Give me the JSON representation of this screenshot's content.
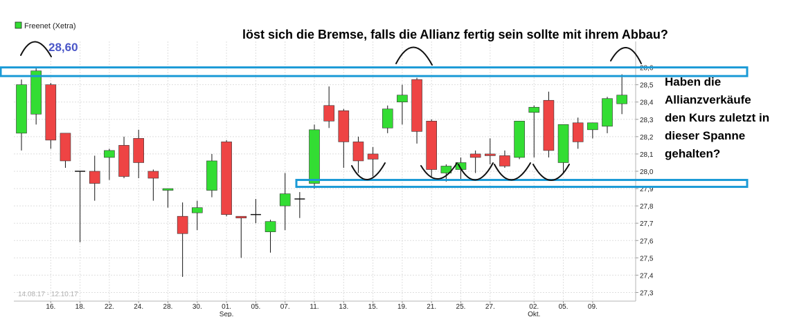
{
  "chart_data": {
    "type": "candlestick",
    "legend": {
      "label": "Freenet (Xetra)",
      "color": "#33dd33",
      "placement": "top-left"
    },
    "date_range": "14.08.17 - 12.10.17",
    "ylim": [
      27.25,
      28.75
    ],
    "yticks": [
      "27,3",
      "27,4",
      "27,5",
      "27,6",
      "27,7",
      "27,8",
      "27,9",
      "28,0",
      "28,1",
      "28,2",
      "28,3",
      "28,4",
      "28,5",
      "28,6"
    ],
    "ytick_values": [
      27.3,
      27.4,
      27.5,
      27.6,
      27.7,
      27.8,
      27.9,
      28.0,
      28.1,
      28.2,
      28.3,
      28.4,
      28.5,
      28.6
    ],
    "xticks": [
      {
        "label": "16.",
        "index": 2
      },
      {
        "label": "18.",
        "index": 4
      },
      {
        "label": "22.",
        "index": 6
      },
      {
        "label": "24.",
        "index": 8
      },
      {
        "label": "28.",
        "index": 10
      },
      {
        "label": "30.",
        "index": 12
      },
      {
        "label": "01.",
        "index": 14
      },
      {
        "label": "05.",
        "index": 16
      },
      {
        "label": "07.",
        "index": 18
      },
      {
        "label": "11.",
        "index": 20
      },
      {
        "label": "13.",
        "index": 22
      },
      {
        "label": "15.",
        "index": 24
      },
      {
        "label": "19.",
        "index": 26
      },
      {
        "label": "21.",
        "index": 28
      },
      {
        "label": "25.",
        "index": 30
      },
      {
        "label": "27.",
        "index": 32
      },
      {
        "label": "02.",
        "index": 35
      },
      {
        "label": "05.",
        "index": 37
      },
      {
        "label": "09.",
        "index": 39
      }
    ],
    "month_labels": [
      {
        "label": "Sep.",
        "index": 14
      },
      {
        "label": "Okt.",
        "index": 35
      }
    ],
    "up_color": "#33dd33",
    "down_color": "#ee4444",
    "candles": [
      {
        "o": 28.22,
        "h": 28.53,
        "l": 28.12,
        "c": 28.5
      },
      {
        "o": 28.33,
        "h": 28.6,
        "l": 28.27,
        "c": 28.58
      },
      {
        "o": 28.5,
        "h": 28.51,
        "l": 28.13,
        "c": 28.18
      },
      {
        "o": 28.22,
        "h": 28.22,
        "l": 28.02,
        "c": 28.06
      },
      {
        "o": 28.0,
        "h": 28.0,
        "l": 27.59,
        "c": 28.0
      },
      {
        "o": 28.0,
        "h": 28.09,
        "l": 27.83,
        "c": 27.93
      },
      {
        "o": 28.08,
        "h": 28.13,
        "l": 27.95,
        "c": 28.12
      },
      {
        "o": 28.15,
        "h": 28.2,
        "l": 27.96,
        "c": 27.97
      },
      {
        "o": 28.19,
        "h": 28.24,
        "l": 27.96,
        "c": 28.05
      },
      {
        "o": 28.0,
        "h": 28.01,
        "l": 27.83,
        "c": 27.96
      },
      {
        "o": 27.89,
        "h": 27.9,
        "l": 27.79,
        "c": 27.9
      },
      {
        "o": 27.74,
        "h": 27.82,
        "l": 27.39,
        "c": 27.64
      },
      {
        "o": 27.76,
        "h": 27.83,
        "l": 27.66,
        "c": 27.79
      },
      {
        "o": 27.89,
        "h": 28.1,
        "l": 27.85,
        "c": 28.06
      },
      {
        "o": 28.17,
        "h": 28.18,
        "l": 27.74,
        "c": 27.75
      },
      {
        "o": 27.74,
        "h": 27.74,
        "l": 27.5,
        "c": 27.73
      },
      {
        "o": 27.75,
        "h": 27.84,
        "l": 27.7,
        "c": 27.75
      },
      {
        "o": 27.65,
        "h": 27.72,
        "l": 27.53,
        "c": 27.71
      },
      {
        "o": 27.8,
        "h": 27.99,
        "l": 27.66,
        "c": 27.87
      },
      {
        "o": 27.84,
        "h": 27.88,
        "l": 27.73,
        "c": 27.84
      },
      {
        "o": 27.93,
        "h": 28.27,
        "l": 27.9,
        "c": 28.24
      },
      {
        "o": 28.38,
        "h": 28.49,
        "l": 28.25,
        "c": 28.29
      },
      {
        "o": 28.35,
        "h": 28.36,
        "l": 28.02,
        "c": 28.17
      },
      {
        "o": 28.17,
        "h": 28.2,
        "l": 27.99,
        "c": 28.06
      },
      {
        "o": 28.1,
        "h": 28.14,
        "l": 27.97,
        "c": 28.07
      },
      {
        "o": 28.25,
        "h": 28.38,
        "l": 28.22,
        "c": 28.36
      },
      {
        "o": 28.4,
        "h": 28.5,
        "l": 28.27,
        "c": 28.44
      },
      {
        "o": 28.53,
        "h": 28.54,
        "l": 28.16,
        "c": 28.23
      },
      {
        "o": 28.29,
        "h": 28.3,
        "l": 27.97,
        "c": 28.01
      },
      {
        "o": 27.99,
        "h": 28.04,
        "l": 27.94,
        "c": 28.03
      },
      {
        "o": 28.01,
        "h": 28.08,
        "l": 27.95,
        "c": 28.05
      },
      {
        "o": 28.1,
        "h": 28.12,
        "l": 27.99,
        "c": 28.08
      },
      {
        "o": 28.1,
        "h": 28.19,
        "l": 28.04,
        "c": 28.09
      },
      {
        "o": 28.09,
        "h": 28.12,
        "l": 28.02,
        "c": 28.03
      },
      {
        "o": 28.08,
        "h": 28.29,
        "l": 28.07,
        "c": 28.29
      },
      {
        "o": 28.34,
        "h": 28.38,
        "l": 28.08,
        "c": 28.37
      },
      {
        "o": 28.41,
        "h": 28.46,
        "l": 28.08,
        "c": 28.12
      },
      {
        "o": 28.05,
        "h": 28.27,
        "l": 27.99,
        "c": 28.27
      },
      {
        "o": 28.28,
        "h": 28.31,
        "l": 28.13,
        "c": 28.17
      },
      {
        "o": 28.24,
        "h": 28.28,
        "l": 28.19,
        "c": 28.28
      },
      {
        "o": 28.26,
        "h": 28.43,
        "l": 28.22,
        "c": 28.42
      },
      {
        "o": 28.39,
        "h": 28.56,
        "l": 28.33,
        "c": 28.44
      }
    ]
  },
  "annotations": {
    "title": "löst sich die Bremse, falls die Allianz fertig sein sollte mit ihrem Abbau?",
    "side_lines": [
      "Haben die",
      "Allianzverkäufe",
      "den Kurs zuletzt in",
      "dieser Spanne",
      "gehalten?"
    ],
    "price_marker": "28,60",
    "band_color": "#1a9ad6",
    "upper_band": [
      28.55,
      28.6
    ],
    "lower_band": [
      27.91,
      27.95
    ]
  }
}
